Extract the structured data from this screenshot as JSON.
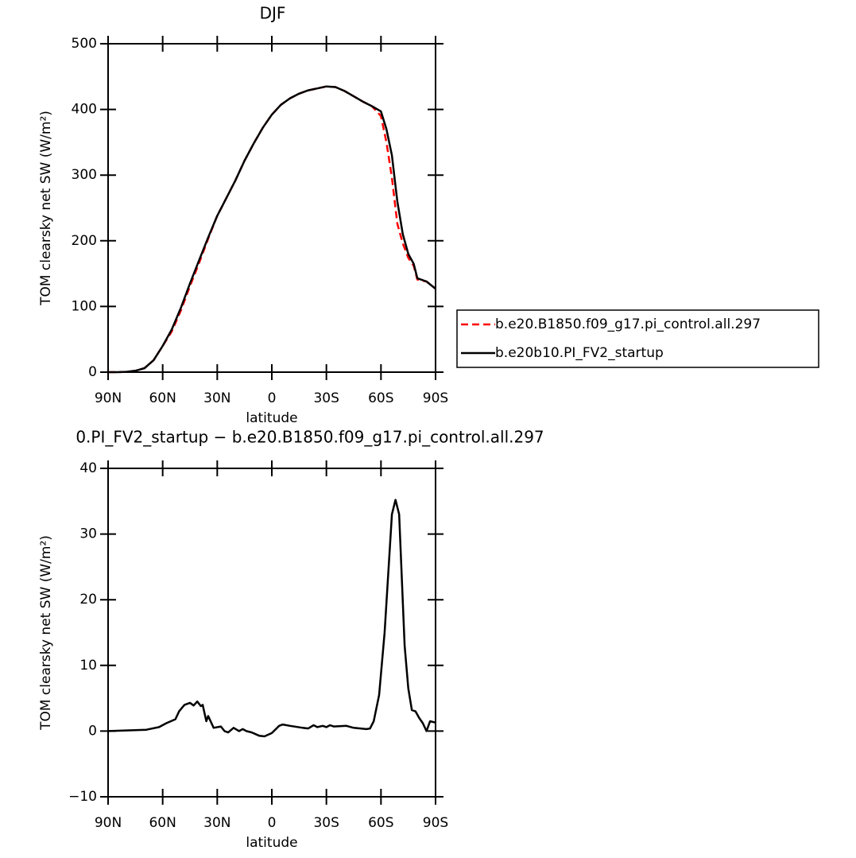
{
  "chart_data": [
    {
      "type": "line",
      "title": "DJF",
      "xlabel": "latitude",
      "ylabel": "TOM clearsky net SW (W/m²)",
      "x": [
        90,
        85,
        80,
        75,
        70,
        65,
        60,
        55,
        50,
        45,
        40,
        35,
        30,
        25,
        20,
        15,
        10,
        5,
        0,
        -5,
        -10,
        -15,
        -20,
        -25,
        -30,
        -35,
        -40,
        -45,
        -50,
        -55,
        -60,
        -63,
        -66,
        -69,
        -72,
        -75,
        -78,
        -80,
        -85,
        -90
      ],
      "series": [
        {
          "name": "b.e20.B1850.f09_g17.pi_control.all.297",
          "color": "#ff0000",
          "line_style": "dashed",
          "values": [
            0,
            0,
            0.5,
            2,
            6,
            18,
            40,
            62,
            94,
            131,
            166,
            203,
            238,
            265,
            292,
            322,
            348,
            372,
            392,
            407,
            417,
            424,
            429,
            432,
            435,
            434,
            428,
            420,
            412,
            405,
            390,
            350,
            296,
            226,
            196,
            174,
            162,
            141,
            138,
            127
          ]
        },
        {
          "name": "b.e20b10.PI_FV2_startup",
          "color": "#000000",
          "line_style": "solid",
          "values": [
            0,
            0,
            0.5,
            2,
            6,
            18,
            40,
            65,
            98,
            135,
            170,
            205,
            238,
            265,
            292,
            322,
            348,
            372,
            392,
            407,
            417,
            424,
            429,
            432,
            435,
            434,
            428,
            420,
            412,
            405,
            397,
            370,
            330,
            260,
            210,
            180,
            165,
            143,
            138,
            127
          ]
        }
      ],
      "xlim": [
        90,
        -90
      ],
      "xticks": [
        {
          "value": 90,
          "label": "90N"
        },
        {
          "value": 60,
          "label": "60N"
        },
        {
          "value": 30,
          "label": "30N"
        },
        0,
        {
          "value": -30,
          "label": "30S"
        },
        {
          "value": -60,
          "label": "60S"
        },
        {
          "value": -90,
          "label": "90S"
        }
      ],
      "ylim": [
        0,
        500
      ],
      "yticks": [
        0,
        100,
        200,
        300,
        400,
        500
      ],
      "legend": "right"
    },
    {
      "type": "line",
      "title": "0.PI_FV2_startup − b.e20.B1850.f09_g17.pi_control.all.297",
      "xlabel": "latitude",
      "ylabel": "TOM clearsky net SW (W/m²)",
      "x": [
        90,
        69,
        62,
        58,
        53,
        51,
        48,
        45,
        43,
        41,
        39,
        38,
        36,
        35,
        32,
        28,
        26,
        24,
        21,
        18,
        16,
        14,
        11,
        7,
        4,
        0,
        -4,
        -6,
        -10,
        -17,
        -20,
        -23,
        -25,
        -28,
        -30,
        -32,
        -34,
        -41,
        -45,
        -52,
        -54,
        -56,
        -59,
        -62,
        -66,
        -68,
        -70,
        -73,
        -75,
        -77,
        -79,
        -81,
        -83,
        -85,
        -87,
        -90
      ],
      "series": [
        {
          "color": "#000000",
          "line_style": "solid",
          "values": [
            0,
            0.2,
            0.6,
            1.2,
            1.8,
            3,
            4,
            4.3,
            3.9,
            4.5,
            3.8,
            4,
            1.5,
            2.3,
            0.5,
            0.7,
            0,
            -0.2,
            0.5,
            0,
            0.3,
            0,
            -0.2,
            -0.7,
            -0.8,
            -0.3,
            0.8,
            1,
            0.8,
            0.5,
            0.4,
            0.9,
            0.6,
            0.8,
            0.6,
            0.9,
            0.7,
            0.8,
            0.5,
            0.3,
            0.4,
            1.5,
            5.5,
            15,
            33,
            35.2,
            33,
            13,
            6.5,
            3.2,
            3,
            2,
            1.2,
            0,
            1.5,
            1.3
          ]
        }
      ],
      "xlim": [
        90,
        -90
      ],
      "xticks": [
        {
          "value": 90,
          "label": "90N"
        },
        {
          "value": 60,
          "label": "60N"
        },
        {
          "value": 30,
          "label": "30N"
        },
        0,
        {
          "value": -30,
          "label": "30S"
        },
        {
          "value": -60,
          "label": "60S"
        },
        {
          "value": -90,
          "label": "90S"
        }
      ],
      "ylim": [
        -10,
        40
      ],
      "yticks": [
        {
          "value": -10,
          "label": "−10"
        },
        0,
        10,
        20,
        30,
        40
      ]
    }
  ]
}
